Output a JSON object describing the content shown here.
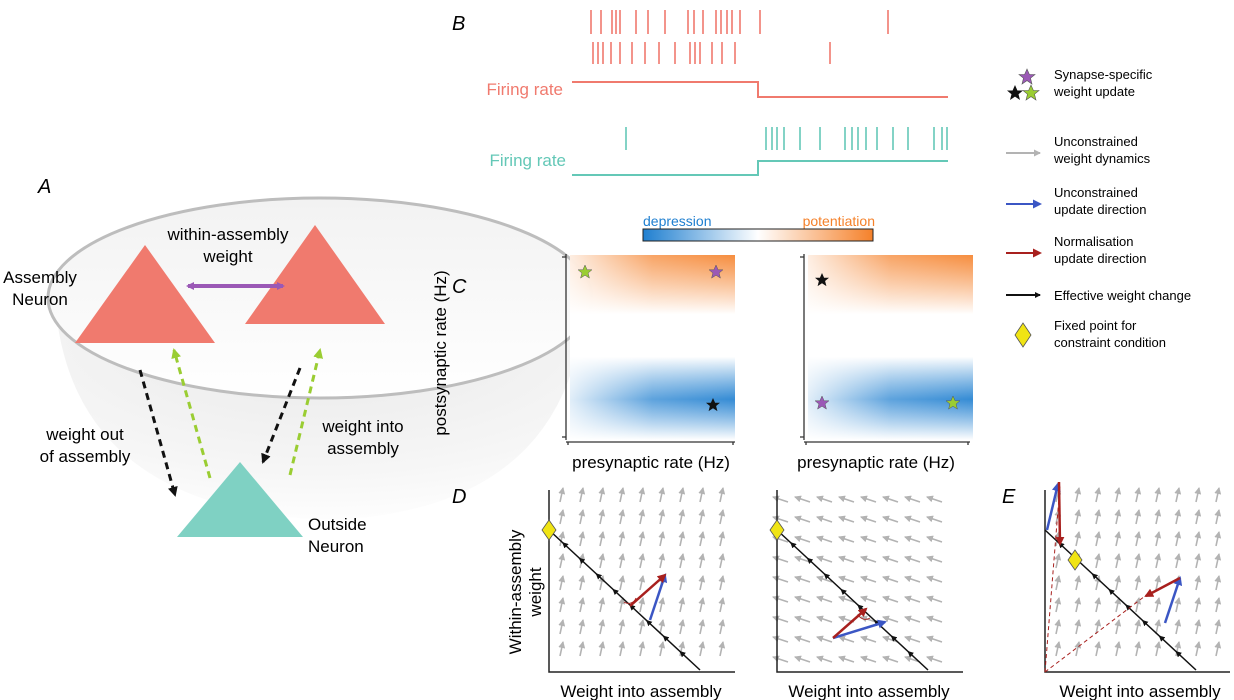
{
  "panels": {
    "A": "A",
    "B": "B",
    "C": "C",
    "D": "D",
    "E": "E"
  },
  "colors": {
    "assembly": "#f07a6e",
    "outside": "#7fd1c3",
    "purple": "#9b59b6",
    "green_dashed": "#9acd32",
    "black": "#111111",
    "spike_pre": "#f07a6e",
    "spike_post": "#64c8b7",
    "depression": "#1f7fd0",
    "potentiation": "#f5812a",
    "unconstrained_dynamics": "#b3b3b3",
    "unconstrained_update": "#3b56c4",
    "normalisation_update": "#a8201e",
    "fixed_point": "#f0e414"
  },
  "panel_a": {
    "within_label_1": "within-assembly",
    "within_label_2": "weight",
    "assembly_label_1": "Assembly",
    "assembly_label_2": "Neuron",
    "outside_label_1": "Outside",
    "outside_label_2": "Neuron",
    "out_label_1": "weight out",
    "out_label_2": "of assembly",
    "into_label_1": "weight into",
    "into_label_2": "assembly"
  },
  "panel_b": {
    "firing_rate_pre": "Firing rate",
    "firing_rate_post": "Firing rate"
  },
  "panel_c": {
    "colorbar_left": "depression",
    "colorbar_right": "potentiation",
    "ylabel": "postsynaptic rate (Hz)",
    "xlabel_left": "presynaptic rate (Hz)",
    "xlabel_right": "presynaptic rate (Hz)"
  },
  "panel_d": {
    "ylabel_1": "Within-assembly",
    "ylabel_2": "weight",
    "xlabel_left": "Weight into assembly",
    "xlabel_right": "Weight into assembly"
  },
  "panel_e": {
    "xlabel": "Weight into assembly"
  },
  "legend": [
    {
      "icon": "stars",
      "line1": "Synapse-specific",
      "line2": "weight update"
    },
    {
      "icon": "gray-arrow",
      "line1": "Unconstrained",
      "line2": "weight dynamics"
    },
    {
      "icon": "blue-arrow",
      "line1": "Unconstrained",
      "line2": "update direction"
    },
    {
      "icon": "red-arrow",
      "line1": "Normalisation",
      "line2": "update direction"
    },
    {
      "icon": "black-arrow",
      "line1": "Effective weight change",
      "line2": ""
    },
    {
      "icon": "yellow-diamond",
      "line1": "Fixed point for",
      "line2": "constraint condition"
    }
  ]
}
